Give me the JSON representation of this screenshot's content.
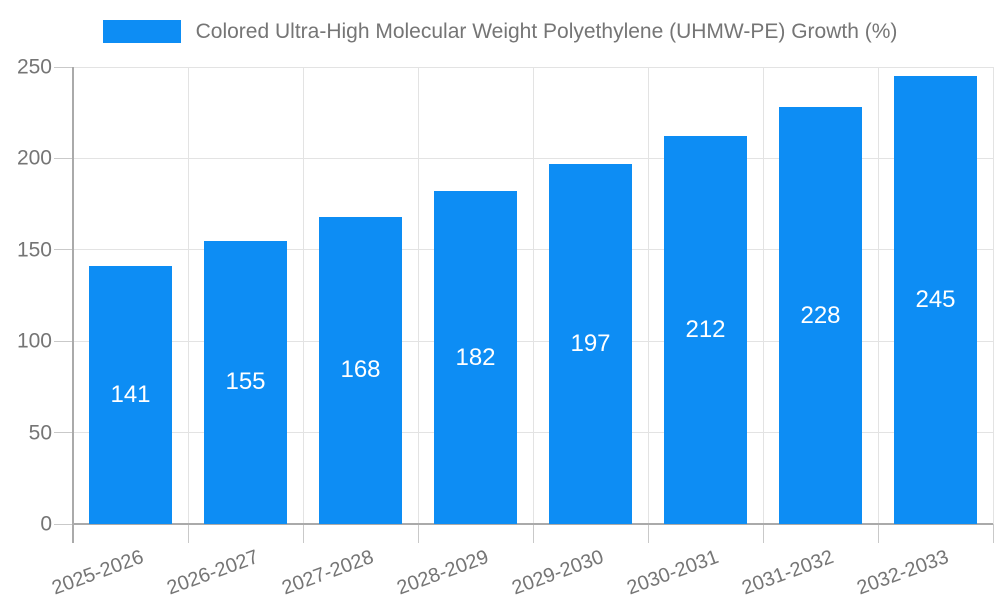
{
  "chart_data": {
    "type": "bar",
    "title": "Colored Ultra-High Molecular Weight Polyethylene (UHMW-PE) Growth (%)",
    "legend": {
      "position": "top-center",
      "label": "Colored Ultra-High Molecular Weight Polyethylene (UHMW-PE) Growth (%)"
    },
    "categories": [
      "2025-2026",
      "2026-2027",
      "2027-2028",
      "2028-2029",
      "2029-2030",
      "2030-2031",
      "2031-2032",
      "2032-2033"
    ],
    "values": [
      141,
      155,
      168,
      182,
      197,
      212,
      228,
      245
    ],
    "value_labels_shown": true,
    "xlabel": "",
    "ylabel": "",
    "ylim": [
      0,
      250
    ],
    "yticks": [
      0,
      50,
      100,
      150,
      200,
      250
    ],
    "grid": "horizontal and vertical",
    "x_label_rotation_deg": -20,
    "colors": {
      "bar": "#0d8df4",
      "value_label": "#ffffff",
      "axis_text": "#757575",
      "legend_text": "#757575",
      "gridline": "#e3e3e3",
      "axis_line": "#aaaaaa",
      "tick_mark": "#c9c9c9",
      "background": "#ffffff"
    }
  }
}
